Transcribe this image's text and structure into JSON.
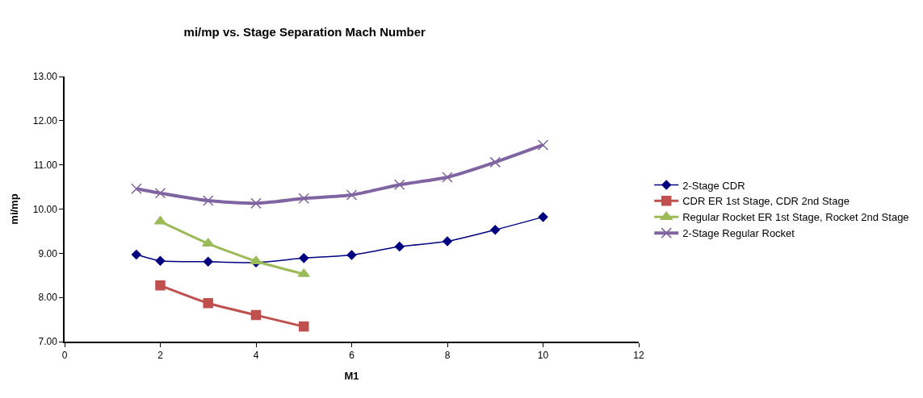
{
  "chart_data": {
    "type": "line",
    "title": "mi/mp vs. Stage Separation Mach Number",
    "xlabel": "M1",
    "ylabel": "mi/mp",
    "xlim": [
      0,
      12
    ],
    "xticks": [
      0,
      2,
      4,
      6,
      8,
      10,
      12
    ],
    "ylim": [
      7,
      13
    ],
    "yticks": [
      {
        "value": 7,
        "label": "7.00"
      },
      {
        "value": 8,
        "label": "8.00"
      },
      {
        "value": 9,
        "label": "9.00"
      },
      {
        "value": 10,
        "label": "10.00"
      },
      {
        "value": 11,
        "label": "11.00"
      },
      {
        "value": 12,
        "label": "12.00"
      },
      {
        "value": 13,
        "label": "13.00"
      }
    ],
    "grid": false,
    "legend": "right",
    "series": [
      {
        "name": "2-Stage CDR",
        "color": "#000080",
        "marker": "diamond",
        "x": [
          1.5,
          2,
          3,
          4,
          5,
          6,
          7,
          8,
          9,
          10
        ],
        "values": [
          8.97,
          8.83,
          8.81,
          8.79,
          8.89,
          8.96,
          9.15,
          9.27,
          9.53,
          9.82
        ]
      },
      {
        "name": "CDR ER 1st Stage, CDR 2nd Stage",
        "color": "#c0504d",
        "marker": "square",
        "x": [
          2,
          3,
          4,
          5
        ],
        "values": [
          8.27,
          7.87,
          7.6,
          7.34
        ]
      },
      {
        "name": "Regular Rocket ER 1st Stage, Rocket 2nd Stage",
        "color": "#9bbb59",
        "marker": "triangle",
        "x": [
          2,
          3,
          4,
          5
        ],
        "values": [
          9.72,
          9.22,
          8.82,
          8.53
        ]
      },
      {
        "name": "2-Stage Regular Rocket",
        "color": "#8064a2",
        "marker": "cross",
        "x": [
          1.5,
          2,
          3,
          4,
          5,
          6,
          7,
          8,
          9,
          10
        ],
        "values": [
          10.46,
          10.36,
          10.19,
          10.13,
          10.24,
          10.32,
          10.55,
          10.72,
          11.06,
          11.45
        ]
      }
    ]
  }
}
